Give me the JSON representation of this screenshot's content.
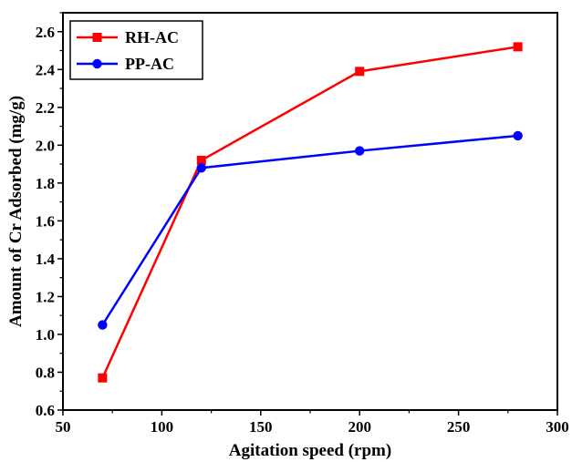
{
  "chart_data": {
    "type": "line",
    "xlabel": "Agitation speed (rpm)",
    "ylabel": "Amount of Cr Adsorbed (mg/g)",
    "xlim": [
      50,
      300
    ],
    "ylim": [
      0.6,
      2.7
    ],
    "xticks": [
      50,
      100,
      150,
      200,
      250,
      300
    ],
    "yticks": [
      0.6,
      0.8,
      1.0,
      1.2,
      1.4,
      1.6,
      1.8,
      2.0,
      2.2,
      2.4,
      2.6
    ],
    "xtick_labels": [
      "50",
      "100",
      "150",
      "200",
      "250",
      "300"
    ],
    "ytick_labels": [
      "0.6",
      "0.8",
      "1.0",
      "1.2",
      "1.4",
      "1.6",
      "1.8",
      "2.0",
      "2.2",
      "2.4",
      "2.6"
    ],
    "legend_position": "top-left",
    "grid": false,
    "series": [
      {
        "name": "RH-AC",
        "color": "#ff0000",
        "marker": "square",
        "x": [
          70,
          120,
          200,
          280
        ],
        "y": [
          0.77,
          1.92,
          2.39,
          2.52
        ]
      },
      {
        "name": "PP-AC",
        "color": "#0000ff",
        "marker": "circle",
        "x": [
          70,
          120,
          200,
          280
        ],
        "y": [
          1.05,
          1.88,
          1.97,
          2.05
        ]
      }
    ]
  }
}
